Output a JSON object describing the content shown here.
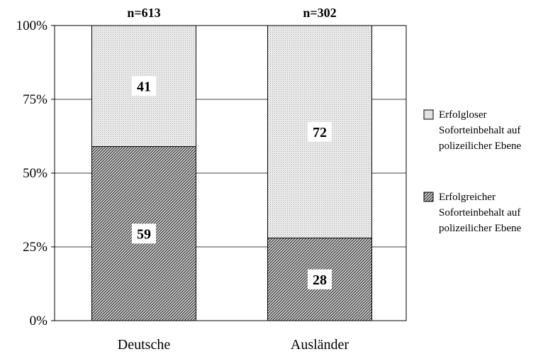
{
  "chart_data": {
    "type": "bar",
    "stacked": true,
    "categories": [
      "Deutsche",
      "Ausländer"
    ],
    "totals_labels": [
      "n=613",
      "n=302"
    ],
    "series": [
      {
        "name": "Erfolgreicher Soforteinbehalt auf polizeilicher Ebene",
        "legend_lines": [
          "Erfolgreicher",
          "Soforteinbehalt auf",
          "polizeilicher Ebene"
        ],
        "values": [
          59,
          28
        ],
        "labels": [
          "59",
          "28"
        ],
        "pattern": "hatch-dense",
        "color": "#555555"
      },
      {
        "name": "Erfolgloser Soforteinbehalt auf polizeilicher Ebene",
        "legend_lines": [
          "Erfolgloser",
          "Soforteinbehalt auf",
          "polizeilicher Ebene"
        ],
        "values": [
          41,
          72
        ],
        "labels": [
          "41",
          "72"
        ],
        "pattern": "stipple-light",
        "color": "#bbbbbb"
      }
    ],
    "ylim": [
      0,
      100
    ],
    "yticks": [
      0,
      25,
      50,
      75,
      100
    ],
    "ytick_labels": [
      "0%",
      "25%",
      "50%",
      "75%",
      "100%"
    ],
    "grid": true,
    "legend_position": "right",
    "title": "",
    "xlabel": "",
    "ylabel": ""
  }
}
